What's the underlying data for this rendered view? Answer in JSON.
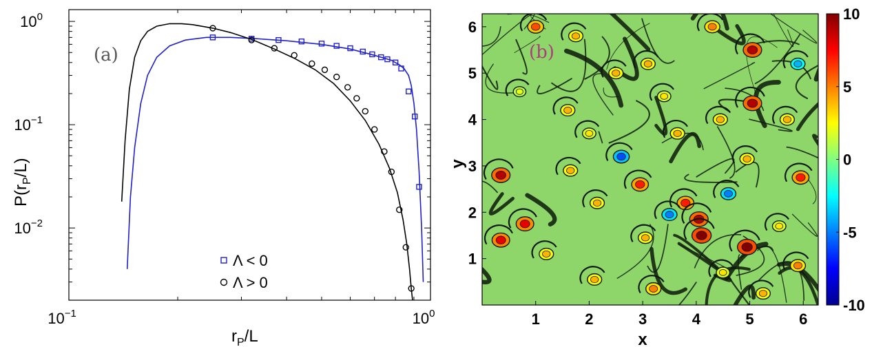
{
  "chart_data": [
    {
      "type": "line",
      "panel_label": "(a)",
      "xlabel": "r",
      "xlabel_sub": "P",
      "xlabel_suffix": "/L",
      "ylabel": "P(r",
      "ylabel_sub": "P",
      "ylabel_suffix": "/L)",
      "xscale": "log",
      "yscale": "log",
      "xlim": [
        0.1,
        1.0
      ],
      "ylim": [
        0.002,
        1.3
      ],
      "xticks": [
        {
          "value": 0.1,
          "base": "10",
          "exp": "−1"
        },
        {
          "value": 1.0,
          "base": "10",
          "exp": "0"
        }
      ],
      "yticks": [
        {
          "value": 0.01,
          "base": "10",
          "exp": "−2"
        },
        {
          "value": 0.1,
          "base": "10",
          "exp": "−1"
        },
        {
          "value": 1.0,
          "base": "10",
          "exp": "0"
        }
      ],
      "legend_position": "bottom-right",
      "series": [
        {
          "name": "Λ < 0",
          "color": "#1f1fd0",
          "marker": "square",
          "curve": {
            "x": [
              0.145,
              0.148,
              0.152,
              0.158,
              0.165,
              0.175,
              0.19,
              0.21,
              0.24,
              0.28,
              0.33,
              0.4,
              0.5,
              0.6,
              0.7,
              0.78,
              0.82,
              0.845,
              0.87,
              0.885,
              0.9,
              0.915,
              0.93,
              0.945,
              0.955
            ],
            "y": [
              0.004,
              0.02,
              0.06,
              0.16,
              0.3,
              0.45,
              0.58,
              0.66,
              0.7,
              0.7,
              0.68,
              0.65,
              0.6,
              0.54,
              0.47,
              0.42,
              0.38,
              0.35,
              0.3,
              0.24,
              0.16,
              0.09,
              0.035,
              0.01,
              0.003
            ]
          },
          "markers": {
            "x": [
              0.25,
              0.32,
              0.38,
              0.44,
              0.5,
              0.55,
              0.6,
              0.65,
              0.69,
              0.73,
              0.76,
              0.8,
              0.83,
              0.87,
              0.905,
              0.93
            ],
            "y": [
              0.7,
              0.68,
              0.66,
              0.64,
              0.61,
              0.58,
              0.55,
              0.51,
              0.48,
              0.45,
              0.43,
              0.4,
              0.35,
              0.21,
              0.12,
              0.025
            ]
          }
        },
        {
          "name": "Λ > 0",
          "color": "#000000",
          "marker": "circle",
          "curve": {
            "x": [
              0.14,
              0.143,
              0.147,
              0.152,
              0.158,
              0.165,
              0.175,
              0.19,
              0.205,
              0.22,
              0.25,
              0.28,
              0.32,
              0.37,
              0.42,
              0.48,
              0.54,
              0.6,
              0.66,
              0.72,
              0.77,
              0.81,
              0.84,
              0.86,
              0.875,
              0.885,
              0.9,
              0.91
            ],
            "y": [
              0.018,
              0.07,
              0.22,
              0.45,
              0.65,
              0.8,
              0.9,
              0.95,
              0.95,
              0.93,
              0.86,
              0.78,
              0.67,
              0.54,
              0.44,
              0.34,
              0.25,
              0.17,
              0.11,
              0.065,
              0.038,
              0.022,
              0.012,
              0.007,
              0.004,
              0.0026,
              0.0015,
              0.001
            ]
          },
          "markers": {
            "x": [
              0.25,
              0.32,
              0.37,
              0.42,
              0.47,
              0.51,
              0.55,
              0.59,
              0.625,
              0.66,
              0.7,
              0.745,
              0.78,
              0.82,
              0.855,
              0.885
            ],
            "y": [
              0.86,
              0.66,
              0.55,
              0.47,
              0.39,
              0.34,
              0.29,
              0.23,
              0.18,
              0.135,
              0.09,
              0.055,
              0.035,
              0.015,
              0.0065,
              0.0026
            ]
          }
        }
      ]
    },
    {
      "type": "heatmap",
      "panel_label": "(b)",
      "xlabel": "x",
      "ylabel": "y",
      "xlim": [
        0,
        6.28
      ],
      "ylim": [
        0,
        6.28
      ],
      "xticks": [
        "1",
        "2",
        "3",
        "4",
        "5",
        "6"
      ],
      "yticks": [
        "1",
        "2",
        "3",
        "4",
        "5",
        "6"
      ],
      "colorbar": {
        "min": -10,
        "max": 10,
        "ticks": [
          "10",
          "5",
          "0",
          "-5",
          "-10"
        ],
        "colormap": "jet"
      },
      "background_color": "#8fd66a",
      "vortices": [
        {
          "x": 1.0,
          "y": 6.0,
          "v": 6
        },
        {
          "x": 1.75,
          "y": 5.8,
          "v": 4
        },
        {
          "x": 4.3,
          "y": 6.0,
          "v": 5
        },
        {
          "x": 5.05,
          "y": 5.5,
          "v": 9
        },
        {
          "x": 2.5,
          "y": 5.0,
          "v": 4
        },
        {
          "x": 3.1,
          "y": 5.2,
          "v": 4
        },
        {
          "x": 5.05,
          "y": 4.35,
          "v": 9
        },
        {
          "x": 2.0,
          "y": 3.7,
          "v": 3
        },
        {
          "x": 1.6,
          "y": 4.2,
          "v": 4
        },
        {
          "x": 4.45,
          "y": 4.0,
          "v": 4
        },
        {
          "x": 5.7,
          "y": 4.0,
          "v": 4
        },
        {
          "x": 3.65,
          "y": 3.7,
          "v": 4
        },
        {
          "x": 0.35,
          "y": 2.8,
          "v": 9
        },
        {
          "x": 1.65,
          "y": 2.9,
          "v": 4
        },
        {
          "x": 2.95,
          "y": 2.6,
          "v": 7
        },
        {
          "x": 5.95,
          "y": 2.75,
          "v": 7
        },
        {
          "x": 4.95,
          "y": 3.15,
          "v": 4
        },
        {
          "x": 2.15,
          "y": 2.2,
          "v": 4
        },
        {
          "x": 3.8,
          "y": 2.2,
          "v": 7
        },
        {
          "x": 0.8,
          "y": 1.75,
          "v": 8
        },
        {
          "x": 4.05,
          "y": 1.85,
          "v": 9
        },
        {
          "x": 3.05,
          "y": 1.45,
          "v": 4
        },
        {
          "x": 4.1,
          "y": 1.5,
          "v": 10
        },
        {
          "x": 0.35,
          "y": 1.4,
          "v": 8
        },
        {
          "x": 4.95,
          "y": 1.25,
          "v": 10
        },
        {
          "x": 1.2,
          "y": 1.1,
          "v": 4
        },
        {
          "x": 5.9,
          "y": 0.85,
          "v": 5
        },
        {
          "x": 2.1,
          "y": 0.55,
          "v": 4
        },
        {
          "x": 3.2,
          "y": 0.35,
          "v": 5
        },
        {
          "x": 5.25,
          "y": 0.25,
          "v": 4
        },
        {
          "x": 4.5,
          "y": 0.7,
          "v": 3
        },
        {
          "x": 5.55,
          "y": 1.7,
          "v": 3
        },
        {
          "x": 3.4,
          "y": 4.5,
          "v": 3
        },
        {
          "x": 0.7,
          "y": 4.6,
          "v": 2
        },
        {
          "x": 2.6,
          "y": 3.2,
          "v": -6
        },
        {
          "x": 3.5,
          "y": 1.95,
          "v": -5
        },
        {
          "x": 5.9,
          "y": 5.2,
          "v": -4
        },
        {
          "x": 4.6,
          "y": 2.4,
          "v": -5
        }
      ]
    }
  ]
}
